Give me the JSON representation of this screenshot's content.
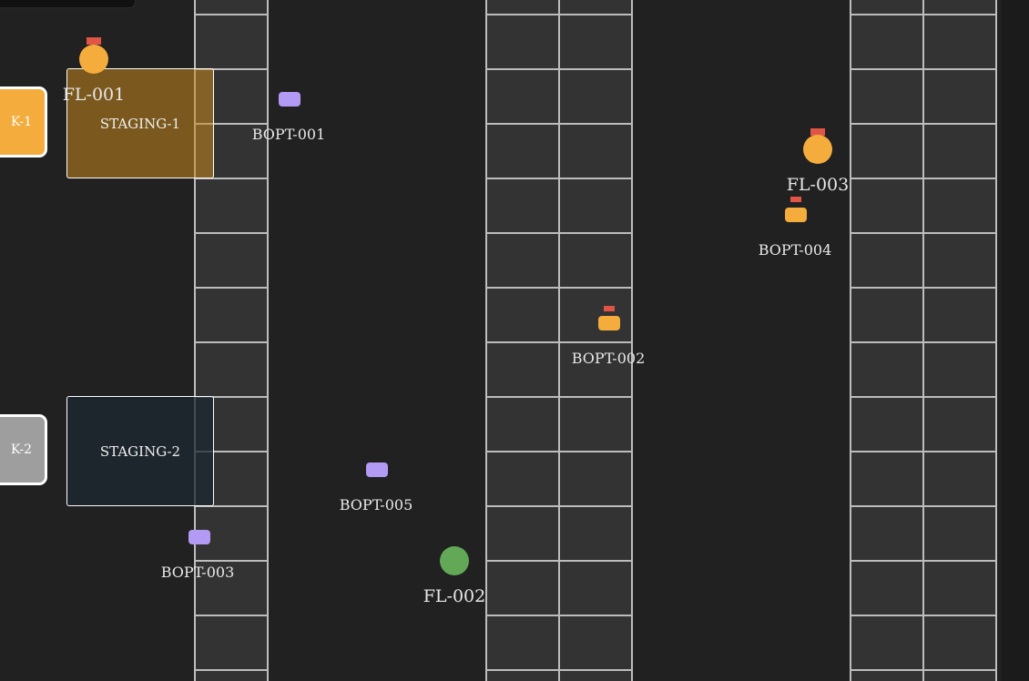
{
  "docks": [
    {
      "label": "K-1",
      "color": "#f4ac3d"
    },
    {
      "label": "K-2",
      "color": "#9e9e9e"
    }
  ],
  "staging": [
    {
      "label": "STAGING-1"
    },
    {
      "label": "STAGING-2"
    }
  ],
  "forklifts": [
    {
      "id": "FL-001",
      "color": "#f4ac3d",
      "flag": true
    },
    {
      "id": "FL-002",
      "color": "#62a857",
      "flag": false
    },
    {
      "id": "FL-003",
      "color": "#f4ac3d",
      "flag": true
    }
  ],
  "robots": [
    {
      "id": "BOPT-001",
      "state": "idle"
    },
    {
      "id": "BOPT-002",
      "state": "busy"
    },
    {
      "id": "BOPT-003",
      "state": "idle"
    },
    {
      "id": "BOPT-004",
      "state": "busy"
    },
    {
      "id": "BOPT-005",
      "state": "idle"
    }
  ],
  "colors": {
    "background": "#212121",
    "rack": "#333333",
    "rack_lines": "#bdbdbd",
    "alert_flag": "#e05545",
    "idle_robot": "#b39af5",
    "busy_robot": "#f4ac3d"
  }
}
